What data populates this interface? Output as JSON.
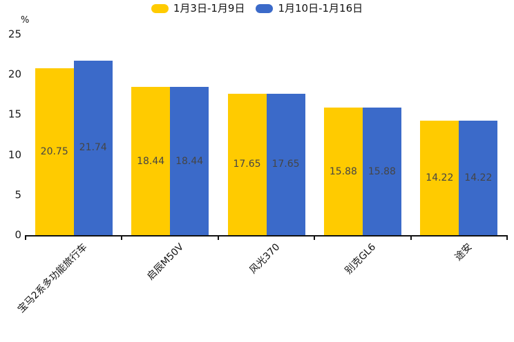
{
  "chart_data": {
    "type": "bar",
    "title": "",
    "unit_label": "%",
    "categories": [
      "宝马2系多功能旅行车",
      "启辰M50V",
      "风光370",
      "别克GL6",
      "途安"
    ],
    "series": [
      {
        "name": "1月3日-1月9日",
        "color": "#FFCB00",
        "values": [
          20.75,
          18.44,
          17.65,
          15.88,
          14.22
        ]
      },
      {
        "name": "1月10日-1月16日",
        "color": "#3B6AC9",
        "values": [
          21.74,
          18.44,
          17.65,
          15.88,
          14.22
        ]
      }
    ],
    "value_labels": [
      [
        "20.75",
        "18.44",
        "17.65",
        "15.88",
        "14.22"
      ],
      [
        "21.74",
        "18.44",
        "17.65",
        "15.88",
        "14.22"
      ]
    ],
    "ylim": [
      0,
      25
    ],
    "yticks": [
      0,
      5,
      10,
      15,
      20,
      25
    ],
    "legend_position": "top",
    "grid": false,
    "axis_color": "#111111",
    "value_label_color": "#454545"
  }
}
